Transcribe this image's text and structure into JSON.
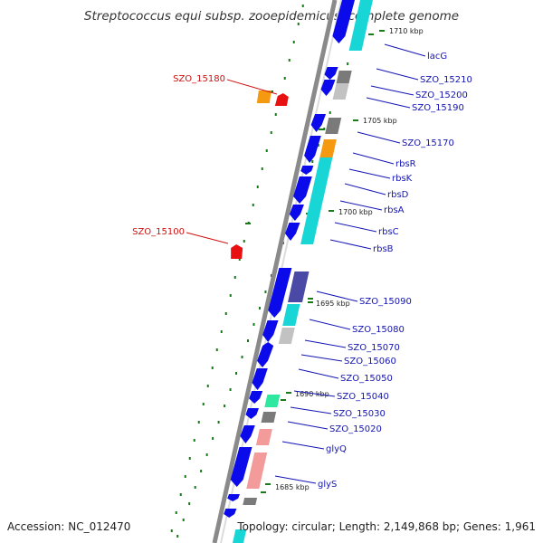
{
  "title": "Streptococcus equi subsp. zooepidemicus, complete genome",
  "accession": "Accession: NC_012470",
  "summary": "Topology: circular; Length: 2,149,868 bp; Genes: 1,961",
  "colors": {
    "cds": "#0a0aea",
    "gc_dots": "#1a7a1a",
    "backbone": "#8a8a8a",
    "right_label": "#1414b4",
    "left_label": "#cc1111",
    "cyan": "#19d6d6",
    "gray": "#7a7a7a",
    "light_gray": "#c2c2c2",
    "orange": "#f59a10",
    "salmon": "#f39b9b",
    "navy": "#4a4aa6",
    "green_cyan": "#2ee8a0",
    "red": "#e81010"
  },
  "position_ticks": [
    {
      "label": "1710 kbp"
    },
    {
      "label": "1705 kbp"
    },
    {
      "label": "1700 kbp"
    },
    {
      "label": "1695 kbp"
    },
    {
      "label": "1690 kbp"
    },
    {
      "label": "1685 kbp"
    }
  ],
  "right_labels": [
    {
      "text": "lacG"
    },
    {
      "text": "SZO_15210"
    },
    {
      "text": "SZO_15200"
    },
    {
      "text": "SZO_15190"
    },
    {
      "text": "SZO_15170"
    },
    {
      "text": "rbsR"
    },
    {
      "text": "rbsK"
    },
    {
      "text": "rbsD"
    },
    {
      "text": "rbsA"
    },
    {
      "text": "rbsC"
    },
    {
      "text": "rbsB"
    },
    {
      "text": "SZO_15090"
    },
    {
      "text": "SZO_15080"
    },
    {
      "text": "SZO_15070"
    },
    {
      "text": "SZO_15060"
    },
    {
      "text": "SZO_15050"
    },
    {
      "text": "SZO_15040"
    },
    {
      "text": "SZO_15030"
    },
    {
      "text": "SZO_15020"
    },
    {
      "text": "glyQ"
    },
    {
      "text": "glyS"
    }
  ],
  "left_labels": [
    {
      "text": "SZO_15180"
    },
    {
      "text": "SZO_15100"
    }
  ]
}
